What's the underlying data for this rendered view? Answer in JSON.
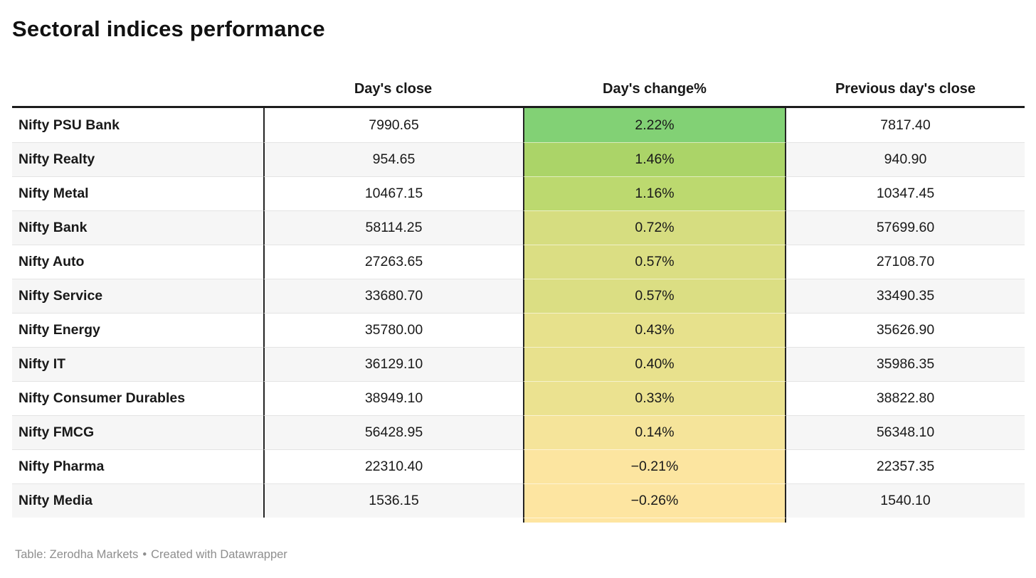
{
  "chart_data": {
    "type": "table",
    "title": "Sectoral indices performance",
    "columns": [
      "",
      "Day's close",
      "Day's change%",
      "Previous day's close"
    ],
    "heatmap_column": "Day's change%",
    "rows": [
      {
        "label": "Nifty PSU Bank",
        "days_close": "7990.65",
        "days_change_pct": "2.22%",
        "prev_close": "7817.40",
        "cell_color": "#82d175"
      },
      {
        "label": "Nifty Realty",
        "days_close": "954.65",
        "days_change_pct": "1.46%",
        "prev_close": "940.90",
        "cell_color": "#abd468"
      },
      {
        "label": "Nifty Metal",
        "days_close": "10467.15",
        "days_change_pct": "1.16%",
        "prev_close": "10347.45",
        "cell_color": "#bcd96f"
      },
      {
        "label": "Nifty Bank",
        "days_close": "58114.25",
        "days_change_pct": "0.72%",
        "prev_close": "57699.60",
        "cell_color": "#d6dd80"
      },
      {
        "label": "Nifty Auto",
        "days_close": "27263.65",
        "days_change_pct": "0.57%",
        "prev_close": "27108.70",
        "cell_color": "#dbde83"
      },
      {
        "label": "Nifty Service",
        "days_close": "33680.70",
        "days_change_pct": "0.57%",
        "prev_close": "33490.35",
        "cell_color": "#dbde83"
      },
      {
        "label": "Nifty Energy",
        "days_close": "35780.00",
        "days_change_pct": "0.43%",
        "prev_close": "35626.90",
        "cell_color": "#e7e18c"
      },
      {
        "label": "Nifty IT",
        "days_close": "36129.10",
        "days_change_pct": "0.40%",
        "prev_close": "35986.35",
        "cell_color": "#e8e18d"
      },
      {
        "label": "Nifty Consumer Durables",
        "days_close": "38949.10",
        "days_change_pct": "0.33%",
        "prev_close": "38822.80",
        "cell_color": "#ebe290"
      },
      {
        "label": "Nifty FMCG",
        "days_close": "56428.95",
        "days_change_pct": "0.14%",
        "prev_close": "56348.10",
        "cell_color": "#f5e49a"
      },
      {
        "label": "Nifty Pharma",
        "days_close": "22310.40",
        "days_change_pct": "−0.21%",
        "prev_close": "22357.35",
        "cell_color": "#fce5a0"
      },
      {
        "label": "Nifty Media",
        "days_close": "1536.15",
        "days_change_pct": "−0.26%",
        "prev_close": "1540.10",
        "cell_color": "#fde5a1"
      }
    ],
    "partial_next_row_color": "#fee5a1",
    "heatmap_color_range": [
      "#82d175",
      "#fee5a1"
    ],
    "source": "Zerodha Markets"
  },
  "footer": {
    "source": "Table: Zerodha Markets",
    "separator": "•",
    "credit": "Created with Datawrapper"
  }
}
